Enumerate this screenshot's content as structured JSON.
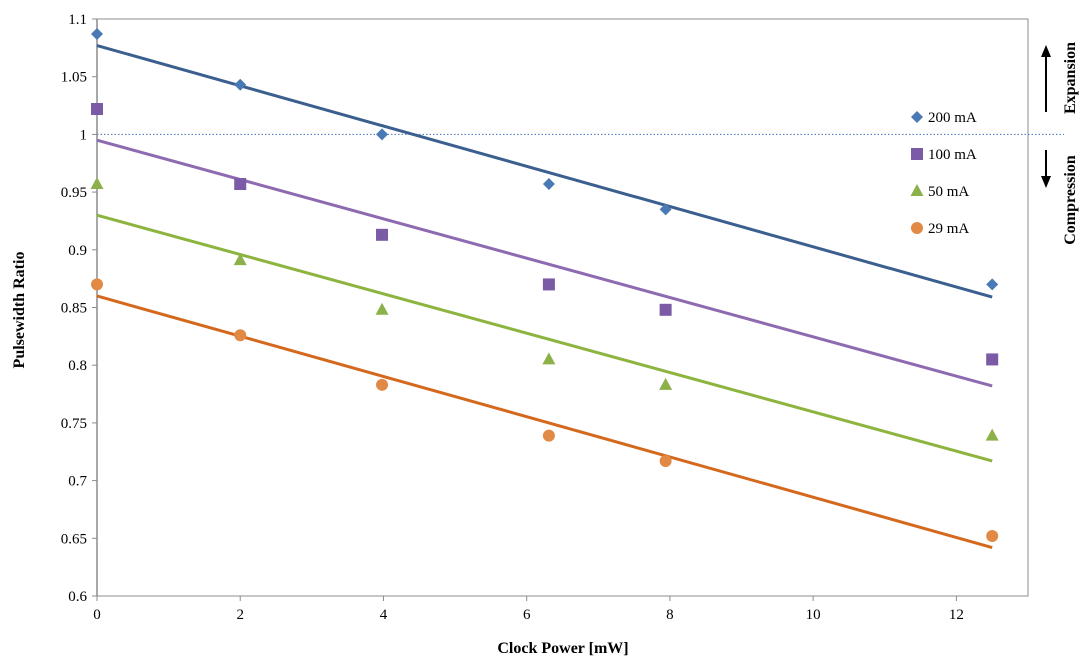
{
  "chart_data": {
    "type": "scatter",
    "title": "",
    "xlabel": "Clock Power [mW]",
    "ylabel": "Pulsewidth Ratio",
    "xlim": [
      0,
      13
    ],
    "ylim": [
      0.6,
      1.1
    ],
    "xticks": [
      0,
      2,
      4,
      6,
      8,
      10,
      12
    ],
    "yticks": [
      0.6,
      0.65,
      0.7,
      0.75,
      0.8,
      0.85,
      0.9,
      0.95,
      1,
      1.05,
      1.1
    ],
    "ytick_labels": [
      "0.6",
      "0.65",
      "0.7",
      "0.75",
      "0.8",
      "0.85",
      "0.9",
      "0.95",
      "1",
      "1.05",
      "1.1"
    ],
    "xtick_labels": [
      "0",
      "2",
      "4",
      "6",
      "8",
      "10",
      "12"
    ],
    "grid": false,
    "legend_position": "right",
    "reference_line": {
      "y": 1,
      "style": "dotted",
      "color": "#4472c4"
    },
    "annotations": {
      "expansion": "Expansion",
      "compression": "Compression"
    },
    "series": [
      {
        "name": "200 mA",
        "marker": "diamond",
        "color": "#4a7ab5",
        "line_color": "#3b5f8f",
        "x": [
          0,
          2,
          3.98,
          6.31,
          7.94,
          12.5
        ],
        "y": [
          1.087,
          1.043,
          1.0,
          0.957,
          0.935,
          0.87
        ],
        "trend": [
          [
            0,
            1.077
          ],
          [
            12.5,
            0.859
          ]
        ]
      },
      {
        "name": "100 mA",
        "marker": "square",
        "color": "#7b5aa6",
        "line_color": "#8e6bb1",
        "x": [
          0,
          2,
          3.98,
          6.31,
          7.94,
          12.5
        ],
        "y": [
          1.022,
          0.957,
          0.913,
          0.87,
          0.848,
          0.805
        ],
        "trend": [
          [
            0,
            0.995
          ],
          [
            12.5,
            0.782
          ]
        ]
      },
      {
        "name": "50 mA",
        "marker": "triangle",
        "color": "#8cb04a",
        "line_color": "#8cb43f",
        "x": [
          0,
          2,
          3.98,
          6.31,
          7.94,
          12.5
        ],
        "y": [
          0.957,
          0.891,
          0.848,
          0.805,
          0.783,
          0.739
        ],
        "trend": [
          [
            0,
            0.93
          ],
          [
            12.5,
            0.717
          ]
        ]
      },
      {
        "name": "29 mA",
        "marker": "circle",
        "color": "#e08a45",
        "line_color": "#d4691e",
        "x": [
          0,
          2,
          3.98,
          6.31,
          7.94,
          12.5
        ],
        "y": [
          0.87,
          0.826,
          0.783,
          0.739,
          0.717,
          0.652
        ],
        "trend": [
          [
            0,
            0.86
          ],
          [
            12.5,
            0.642
          ]
        ]
      }
    ]
  }
}
